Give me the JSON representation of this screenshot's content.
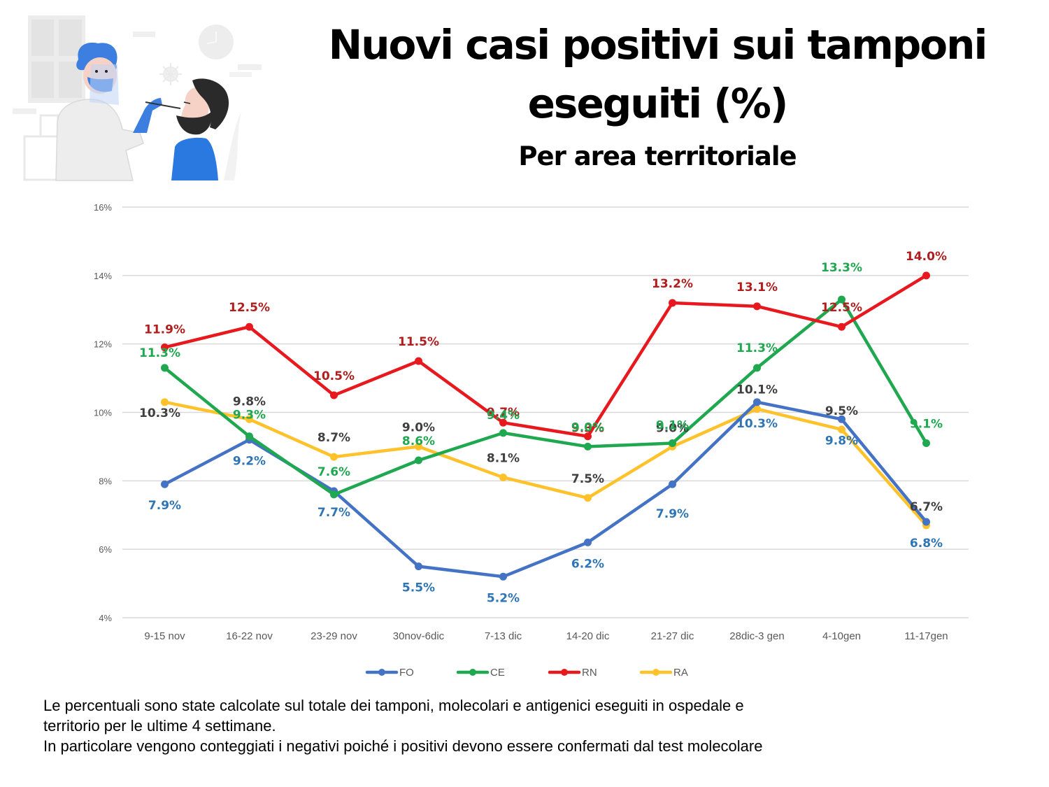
{
  "header": {
    "title_line1": "Nuovi casi positivi sui tamponi",
    "title_line2": "eseguiti (%)",
    "subtitle": "Per area territoriale",
    "illustration": "nasal-swab-test-illustration"
  },
  "colors": {
    "FO": "#4472C4",
    "CE": "#1FA84F",
    "RN": "#E8191E",
    "RA": "#FFC22A",
    "label_FO": "#2E75B6",
    "label_CE": "#1FA84F",
    "label_RN": "#B01E1E",
    "label_RA": "#404040",
    "grid": "#D9D9D9",
    "axis_text": "#595959"
  },
  "chart_data": {
    "type": "line",
    "title": "Nuovi casi positivi sui tamponi eseguiti (%)",
    "subtitle": "Per area territoriale",
    "xlabel": "",
    "ylabel": "",
    "categories": [
      "9-15 nov",
      "16-22 nov",
      "23-29 nov",
      "30nov-6dic",
      "7-13 dic",
      "14-20 dic",
      "21-27 dic",
      "28dic-3 gen",
      "4-10gen",
      "11-17gen"
    ],
    "ylim": [
      4,
      16
    ],
    "yticks": [
      4,
      6,
      8,
      10,
      12,
      14,
      16
    ],
    "ytick_labels": [
      "4%",
      "6%",
      "8%",
      "10%",
      "12%",
      "14%",
      "16%"
    ],
    "grid": true,
    "legend_position": "bottom",
    "series": [
      {
        "name": "FO",
        "values": [
          7.9,
          9.2,
          7.7,
          5.5,
          5.2,
          6.2,
          7.9,
          10.3,
          9.8,
          6.8
        ],
        "labels": [
          "7.9%",
          "9.2%",
          "7.7%",
          "5.5%",
          "5.2%",
          "6.2%",
          "7.9%",
          "10.3%",
          "9.8%",
          "6.8%"
        ]
      },
      {
        "name": "CE",
        "values": [
          11.3,
          9.3,
          7.6,
          8.6,
          9.4,
          9.0,
          9.1,
          11.3,
          13.3,
          9.1
        ],
        "labels": [
          "11.3%",
          "9.3%",
          "7.6%",
          "8.6%",
          "9.4%",
          "9.0%",
          "9.1%",
          "11.3%",
          "13.3%",
          "9.1%"
        ]
      },
      {
        "name": "RN",
        "values": [
          11.9,
          12.5,
          10.5,
          11.5,
          9.7,
          9.3,
          13.2,
          13.1,
          12.5,
          14.0
        ],
        "labels": [
          "11.9%",
          "12.5%",
          "10.5%",
          "11.5%",
          "9.7%",
          "9.3%",
          "13.2%",
          "13.1%",
          "12.5%",
          "14.0%"
        ]
      },
      {
        "name": "RA",
        "values": [
          10.3,
          9.8,
          8.7,
          9.0,
          8.1,
          7.5,
          9.0,
          10.1,
          9.5,
          6.7
        ],
        "labels": [
          "10.3%",
          "9.8%",
          "8.7%",
          "9.0%",
          "8.1%",
          "7.5%",
          "9.0%",
          "10.1%",
          "9.5%",
          "6.7%"
        ]
      }
    ]
  },
  "footnote": {
    "line1": "Le percentuali sono state calcolate sul totale dei tamponi, molecolari e antigenici eseguiti in ospedale e",
    "line2": "territorio per le ultime 4 settimane.",
    "line3": "In particolare vengono conteggiati i negativi poiché i positivi devono essere confermati dal test molecolare"
  }
}
